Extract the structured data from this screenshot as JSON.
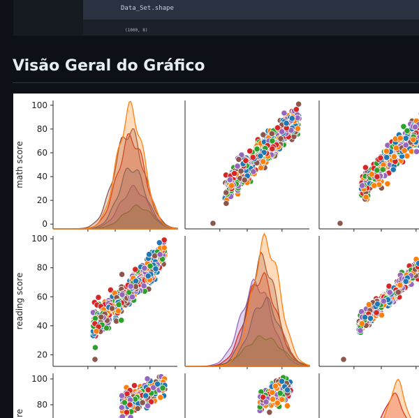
{
  "notebook": {
    "code_line": "Data_Set.shape",
    "output": "(1000, 8)"
  },
  "section": {
    "title": "Visão Geral do Gráfico"
  },
  "pairplot": {
    "variables": [
      "math score",
      "reading score",
      "writing score"
    ],
    "palette": [
      "#1f77b4",
      "#ff7f0e",
      "#2ca02c",
      "#d62728",
      "#9467bd",
      "#8c564b"
    ],
    "math_ticks": [
      0,
      20,
      40,
      60,
      80,
      100
    ],
    "reading_ticks": [
      20,
      40,
      60,
      80,
      100
    ],
    "writing_ticks_visible": [
      80,
      100
    ],
    "row_labels": [
      "math score",
      "reading score",
      "re"
    ]
  }
}
